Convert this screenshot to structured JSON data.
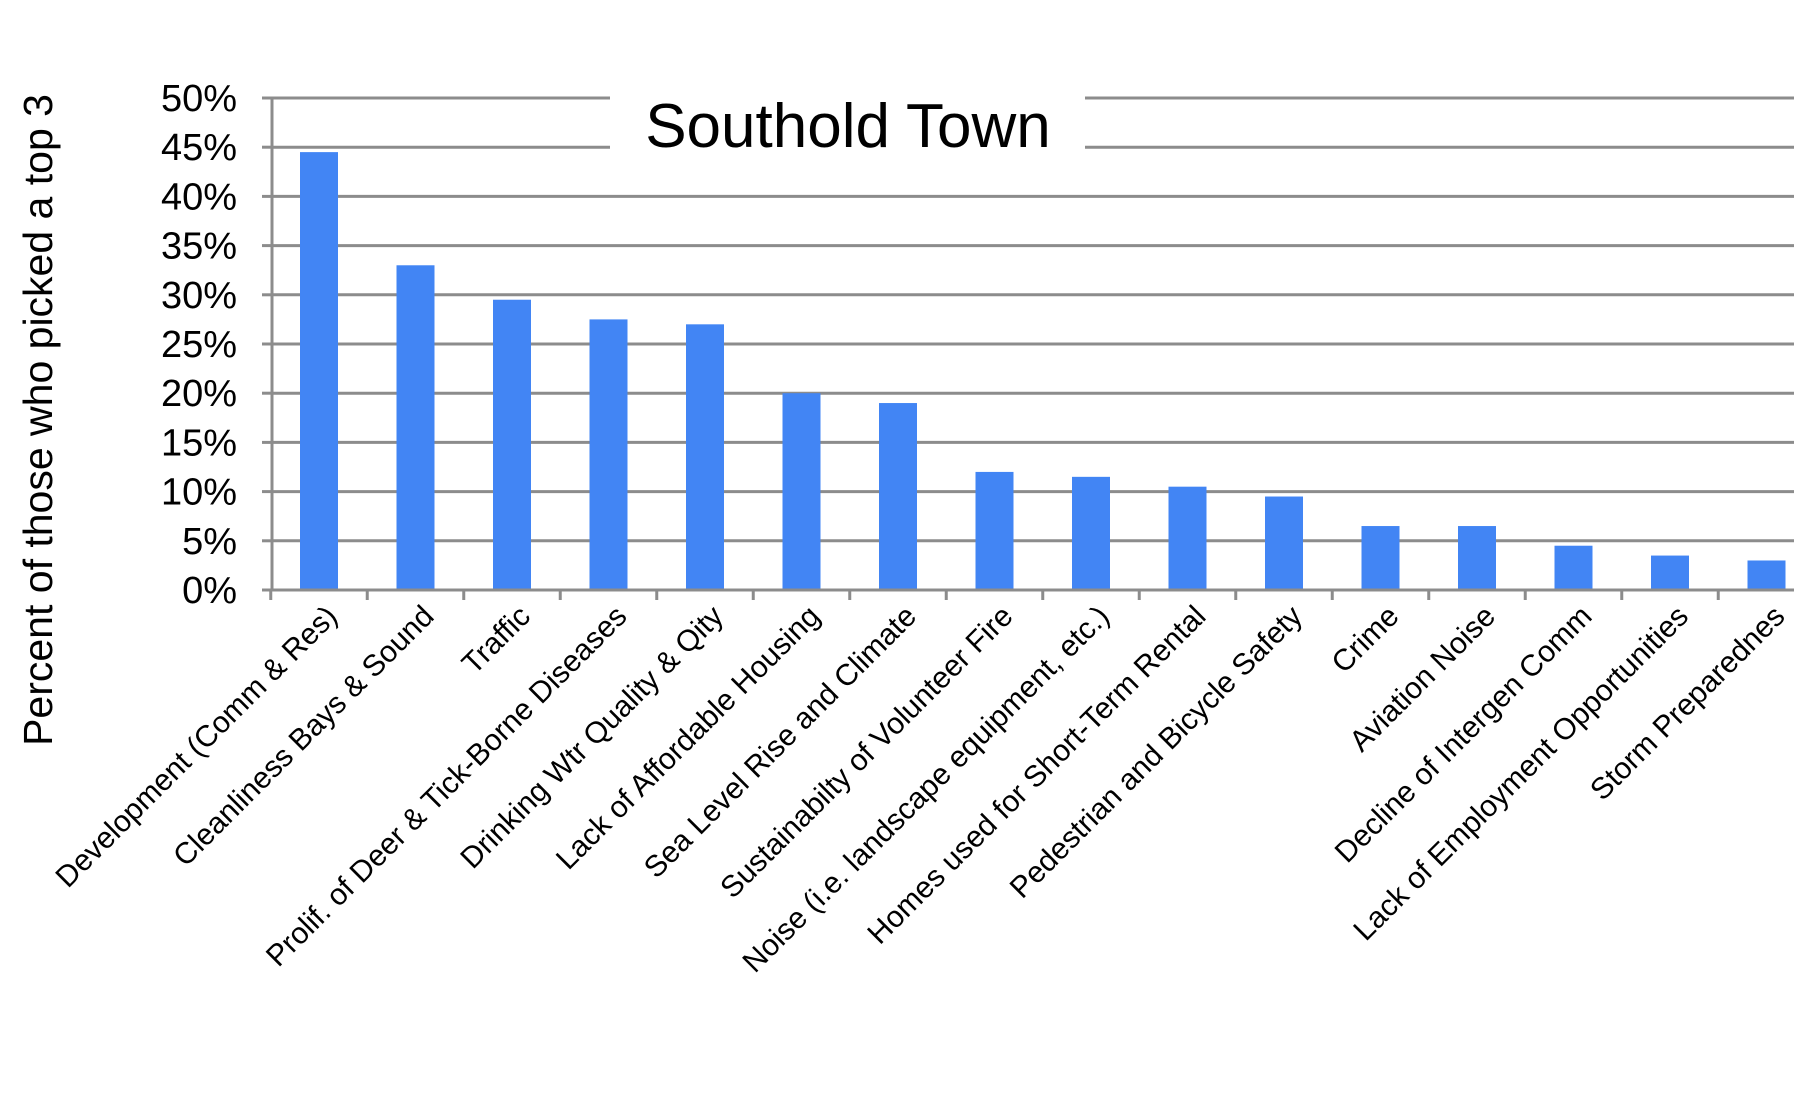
{
  "chart_data": {
    "type": "bar",
    "title": "Southold Town",
    "ylabel": "Percent of those who picked a top 3",
    "xlabel": "",
    "ylim": [
      0,
      50
    ],
    "yticks": [
      "0%",
      "5%",
      "10%",
      "15%",
      "20%",
      "25%",
      "30%",
      "35%",
      "40%",
      "45%",
      "50%"
    ],
    "grid": true,
    "legend": "none",
    "bar_color": "#4285f4",
    "gridline_color": "#8c8c8c",
    "categories": [
      "Development (Comm & Res)",
      "Cleanliness Bays & Sound",
      "Traffic",
      "Prolif. of Deer & Tick-Borne Diseases",
      "Drinking Wtr Quality & Qity",
      "Lack of Affordable Housing",
      "Sea Level Rise and Climate",
      "Sustainabilty of Volunteer Fire",
      "Noise (i.e. landscape equipment, etc.)",
      "Homes used for Short-Term Rental",
      "Pedestrian and Bicycle Safety",
      "Crime",
      "Aviation Noise",
      "Decline of Intergen Comm",
      "Lack of Employment Opportunities",
      "Storm Preparednes"
    ],
    "values": [
      44.5,
      33,
      29.5,
      27.5,
      27,
      20,
      19,
      12,
      11.5,
      10.5,
      9.5,
      6.5,
      6.5,
      4.5,
      3.5,
      3
    ]
  }
}
